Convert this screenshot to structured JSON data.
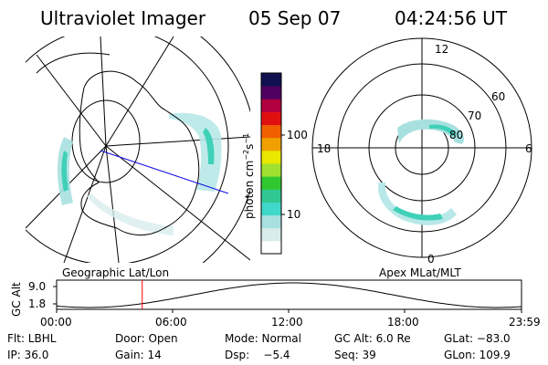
{
  "header": {
    "instrument": "Ultraviolet Imager",
    "date": "05 Sep 07",
    "time": "04:24:56 UT"
  },
  "left_panel": {
    "label": "Geographic Lat/Lon"
  },
  "right_panel": {
    "label": "Apex MLat/MLT",
    "mlt_labels": [
      "12",
      "18",
      "6",
      "0"
    ],
    "lat_labels": [
      "60",
      "70",
      "80"
    ]
  },
  "colorbar": {
    "label": "photon cm",
    "label_exp1": "−2",
    "label_mid": "s",
    "label_exp2": "−1",
    "tick_100": "100",
    "tick_10": "10",
    "scale": "log",
    "colors": [
      "#ffffff",
      "#d8ecec",
      "#a8e0e0",
      "#40d8c8",
      "#30c890",
      "#30c830",
      "#a0e030",
      "#e8e800",
      "#f0a000",
      "#f06000",
      "#e01010",
      "#b00040",
      "#500060",
      "#101050"
    ]
  },
  "altitude_plot": {
    "ylabel": "GC Alt",
    "ytick_top": "9.0",
    "ytick_bottom": "1.8",
    "xticks": [
      "00:00",
      "06:00",
      "12:00",
      "18:00",
      "23:59"
    ],
    "current_time_marker_hours": 4.42,
    "marker_color": "#ff0000"
  },
  "info": {
    "flt": "Flt: LBHL",
    "door": "Door: Open",
    "mode": "Mode: Normal",
    "gc_alt": "GC Alt: 6.0 Re",
    "glat": "GLat: −83.0",
    "ip": "IP: 36.0",
    "gain": "Gain: 14",
    "dsp": "Dsp:    −5.4",
    "seq": "Seq: 39",
    "glon": "GLon: 109.9"
  }
}
